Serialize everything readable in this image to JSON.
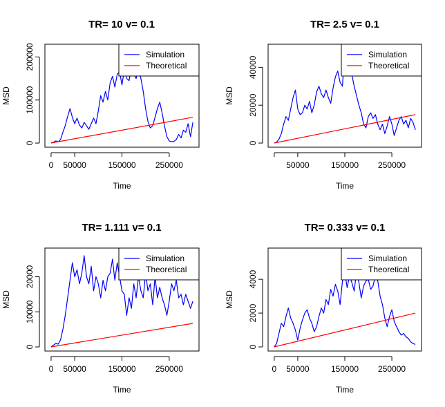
{
  "chart_data": [
    {
      "type": "line",
      "title": "TR= 10 v= 0.1",
      "xlabel": "Time",
      "ylabel": "MSD",
      "xlim": [
        0,
        300000
      ],
      "ylim": [
        0,
        220000
      ],
      "x_ticks": [
        0,
        50000,
        150000,
        250000
      ],
      "x_tick_labels": [
        "0",
        "50000",
        "150000",
        "250000"
      ],
      "y_ticks": [
        0,
        100000,
        200000
      ],
      "y_tick_labels": [
        "0",
        "100000",
        "200000"
      ],
      "legend": {
        "position": "top-right",
        "entries": [
          "Simulation",
          "Theoretical"
        ]
      },
      "series": [
        {
          "name": "Simulation",
          "color": "#0000ff",
          "x": [
            0,
            5000,
            10000,
            15000,
            20000,
            25000,
            30000,
            35000,
            40000,
            45000,
            50000,
            55000,
            60000,
            65000,
            70000,
            75000,
            80000,
            85000,
            90000,
            95000,
            100000,
            105000,
            110000,
            115000,
            120000,
            125000,
            130000,
            135000,
            140000,
            145000,
            150000,
            155000,
            160000,
            165000,
            170000,
            175000,
            180000,
            185000,
            190000,
            195000,
            200000,
            205000,
            210000,
            215000,
            220000,
            225000,
            230000,
            235000,
            240000,
            245000,
            250000,
            255000,
            260000,
            265000,
            270000,
            275000,
            280000,
            285000,
            290000,
            295000,
            300000
          ],
          "values": [
            0,
            2000,
            5000,
            3000,
            8000,
            25000,
            40000,
            62000,
            80000,
            60000,
            45000,
            58000,
            42000,
            35000,
            48000,
            40000,
            32000,
            45000,
            58000,
            45000,
            75000,
            110000,
            95000,
            120000,
            100000,
            140000,
            155000,
            130000,
            160000,
            165000,
            135000,
            170000,
            150000,
            145000,
            175000,
            160000,
            150000,
            175000,
            150000,
            120000,
            80000,
            50000,
            35000,
            40000,
            60000,
            80000,
            95000,
            70000,
            40000,
            15000,
            5000,
            3000,
            4000,
            8000,
            20000,
            12000,
            30000,
            25000,
            45000,
            15000,
            48000
          ]
        },
        {
          "name": "Theoretical",
          "color": "#ff0000",
          "x": [
            0,
            300000
          ],
          "values": [
            0,
            60000
          ]
        }
      ]
    },
    {
      "type": "line",
      "title": "TR= 2.5 v= 0.1",
      "xlabel": "Time",
      "ylabel": "MSD",
      "xlim": [
        0,
        300000
      ],
      "ylim": [
        0,
        50000
      ],
      "x_ticks": [
        0,
        50000,
        150000,
        250000
      ],
      "x_tick_labels": [
        "",
        "50000",
        "150000",
        "250000"
      ],
      "y_ticks": [
        0,
        20000,
        40000
      ],
      "y_tick_labels": [
        "0",
        "20000",
        "40000"
      ],
      "legend": {
        "position": "top-right",
        "entries": [
          "Simulation",
          "Theoretical"
        ]
      },
      "series": [
        {
          "name": "Simulation",
          "color": "#0000ff",
          "x": [
            0,
            5000,
            10000,
            15000,
            20000,
            25000,
            30000,
            35000,
            40000,
            45000,
            50000,
            55000,
            60000,
            65000,
            70000,
            75000,
            80000,
            85000,
            90000,
            95000,
            100000,
            105000,
            110000,
            115000,
            120000,
            125000,
            130000,
            135000,
            140000,
            145000,
            150000,
            155000,
            160000,
            165000,
            170000,
            175000,
            180000,
            185000,
            190000,
            195000,
            200000,
            205000,
            210000,
            215000,
            220000,
            225000,
            230000,
            235000,
            240000,
            245000,
            250000,
            255000,
            260000,
            265000,
            270000,
            275000,
            280000,
            285000,
            290000,
            295000,
            300000
          ],
          "values": [
            0,
            500,
            2000,
            5000,
            10000,
            14000,
            12000,
            18000,
            24000,
            28000,
            18000,
            15000,
            16000,
            20000,
            18000,
            22000,
            16000,
            20000,
            27000,
            30000,
            26000,
            24000,
            28000,
            24000,
            21000,
            29000,
            35000,
            38000,
            32000,
            30000,
            50000,
            40000,
            38000,
            36000,
            30000,
            25000,
            20000,
            16000,
            10000,
            8000,
            14000,
            16000,
            13000,
            15000,
            10000,
            7000,
            10000,
            5000,
            9000,
            14000,
            10000,
            4000,
            8000,
            12000,
            14000,
            10000,
            12000,
            8000,
            13000,
            11000,
            7000
          ]
        },
        {
          "name": "Theoretical",
          "color": "#ff0000",
          "x": [
            0,
            300000
          ],
          "values": [
            0,
            15000
          ]
        }
      ]
    },
    {
      "type": "line",
      "title": "TR= 1.111 v= 0.1",
      "xlabel": "Time",
      "ylabel": "MSD",
      "xlim": [
        0,
        300000
      ],
      "ylim": [
        0,
        27000
      ],
      "x_ticks": [
        0,
        50000,
        150000,
        250000
      ],
      "x_tick_labels": [
        "0",
        "50000",
        "150000",
        "250000"
      ],
      "y_ticks": [
        0,
        10000,
        20000
      ],
      "y_tick_labels": [
        "0",
        "10000",
        "20000"
      ],
      "legend": {
        "position": "top-right",
        "entries": [
          "Simulation",
          "Theoretical"
        ]
      },
      "series": [
        {
          "name": "Simulation",
          "color": "#0000ff",
          "x": [
            0,
            5000,
            10000,
            15000,
            20000,
            25000,
            30000,
            35000,
            40000,
            45000,
            50000,
            55000,
            60000,
            65000,
            70000,
            75000,
            80000,
            85000,
            90000,
            95000,
            100000,
            105000,
            110000,
            115000,
            120000,
            125000,
            130000,
            135000,
            140000,
            145000,
            150000,
            155000,
            160000,
            165000,
            170000,
            175000,
            180000,
            185000,
            190000,
            195000,
            200000,
            205000,
            210000,
            215000,
            220000,
            225000,
            230000,
            235000,
            240000,
            245000,
            250000,
            255000,
            260000,
            265000,
            270000,
            275000,
            280000,
            285000,
            290000,
            295000,
            300000
          ],
          "values": [
            0,
            500,
            1000,
            800,
            2000,
            5000,
            9000,
            14000,
            19000,
            24000,
            20000,
            22000,
            18000,
            21000,
            26000,
            20000,
            18000,
            23000,
            16000,
            20000,
            18000,
            14000,
            19000,
            16000,
            20000,
            21000,
            25000,
            19000,
            24000,
            20000,
            16000,
            15000,
            9000,
            14000,
            11000,
            18000,
            14000,
            20000,
            16000,
            14000,
            21000,
            16000,
            18000,
            12000,
            20000,
            14000,
            17000,
            14000,
            12000,
            9000,
            13000,
            18000,
            16000,
            19000,
            14000,
            15000,
            12000,
            15000,
            13000,
            11000,
            13000
          ]
        },
        {
          "name": "Theoretical",
          "color": "#ff0000",
          "x": [
            0,
            300000
          ],
          "values": [
            0,
            6700
          ]
        }
      ]
    },
    {
      "type": "line",
      "title": "TR= 0.333 v= 0.1",
      "xlabel": "Time",
      "ylabel": "MSD",
      "xlim": [
        0,
        300000
      ],
      "ylim": [
        0,
        5600
      ],
      "x_ticks": [
        0,
        50000,
        150000,
        250000
      ],
      "x_tick_labels": [
        "0",
        "50000",
        "150000",
        "250000"
      ],
      "y_ticks": [
        0,
        2000,
        4000
      ],
      "y_tick_labels": [
        "0",
        "2000",
        "4000"
      ],
      "legend": {
        "position": "top-right",
        "entries": [
          "Simulation",
          "Theoretical"
        ]
      },
      "series": [
        {
          "name": "Simulation",
          "color": "#0000ff",
          "x": [
            0,
            5000,
            10000,
            15000,
            20000,
            25000,
            30000,
            35000,
            40000,
            45000,
            50000,
            55000,
            60000,
            65000,
            70000,
            75000,
            80000,
            85000,
            90000,
            95000,
            100000,
            105000,
            110000,
            115000,
            120000,
            125000,
            130000,
            135000,
            140000,
            145000,
            150000,
            155000,
            160000,
            165000,
            170000,
            175000,
            180000,
            185000,
            190000,
            195000,
            200000,
            205000,
            210000,
            215000,
            220000,
            225000,
            230000,
            235000,
            240000,
            245000,
            250000,
            255000,
            260000,
            265000,
            270000,
            275000,
            280000,
            285000,
            290000,
            295000,
            300000
          ],
          "values": [
            0,
            200,
            800,
            1400,
            1200,
            1800,
            2300,
            1700,
            1400,
            1000,
            400,
            1100,
            1600,
            2000,
            2200,
            1700,
            1400,
            900,
            1200,
            1800,
            2300,
            2000,
            2800,
            2500,
            3400,
            3000,
            3700,
            3300,
            2500,
            3900,
            4400,
            3500,
            4200,
            3800,
            3300,
            4500,
            3800,
            2900,
            3600,
            3900,
            4000,
            3400,
            3600,
            4200,
            3900,
            3000,
            2500,
            1700,
            1200,
            1800,
            2200,
            1500,
            1200,
            900,
            700,
            800,
            600,
            500,
            300,
            200,
            150
          ]
        },
        {
          "name": "Theoretical",
          "color": "#ff0000",
          "x": [
            0,
            300000
          ],
          "values": [
            0,
            2000
          ]
        }
      ]
    }
  ]
}
